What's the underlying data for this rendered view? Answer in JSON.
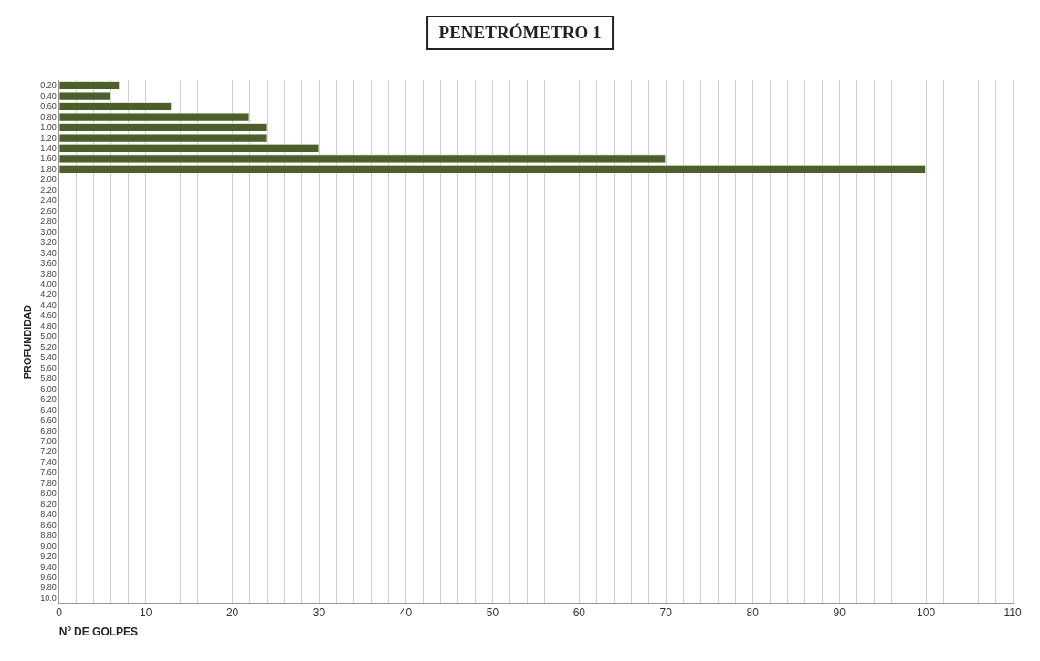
{
  "chart_data": {
    "type": "bar",
    "orientation": "horizontal",
    "title": "PENETRÓMETRO 1",
    "xlabel": "Nº DE GOLPES",
    "ylabel": "PROFUNDIDAD",
    "categories": [
      "0.20",
      "0.40",
      "0.60",
      "0.80",
      "1.00",
      "1.20",
      "1.40",
      "1.60",
      "1.80",
      "2.00",
      "2.20",
      "2.40",
      "2.60",
      "2.80",
      "3.00",
      "3.20",
      "3.40",
      "3.60",
      "3.80",
      "4.00",
      "4.20",
      "4.40",
      "4.60",
      "4.80",
      "5.00",
      "5.20",
      "5.40",
      "5.60",
      "5.80",
      "6.00",
      "6.20",
      "6.40",
      "6.60",
      "6.80",
      "7.00",
      "7.20",
      "7.40",
      "7.60",
      "7.80",
      "8.00",
      "8.20",
      "8.40",
      "8.60",
      "8.80",
      "9.00",
      "9.20",
      "9.40",
      "9.60",
      "9.80",
      "10.0"
    ],
    "values": [
      7,
      6,
      13,
      22,
      24,
      24,
      30,
      70,
      100,
      null,
      null,
      null,
      null,
      null,
      null,
      null,
      null,
      null,
      null,
      null,
      null,
      null,
      null,
      null,
      null,
      null,
      null,
      null,
      null,
      null,
      null,
      null,
      null,
      null,
      null,
      null,
      null,
      null,
      null,
      null,
      null,
      null,
      null,
      null,
      null,
      null,
      null,
      null,
      null,
      null
    ],
    "color": "#4b5e2c",
    "xlim": [
      0,
      110
    ],
    "xticks": [
      0,
      {
        "value": 2,
        "label": null
      },
      {
        "value": 4,
        "label": null
      },
      {
        "value": 6,
        "label": null
      },
      {
        "value": 8,
        "label": null
      },
      10,
      {
        "value": 12,
        "label": null
      },
      {
        "value": 14,
        "label": null
      },
      {
        "value": 16,
        "label": null
      },
      {
        "value": 18,
        "label": null
      },
      20,
      {
        "value": 22,
        "label": null
      },
      {
        "value": 24,
        "label": null
      },
      {
        "value": 26,
        "label": null
      },
      {
        "value": 28,
        "label": null
      },
      30,
      {
        "value": 32,
        "label": null
      },
      {
        "value": 34,
        "label": null
      },
      {
        "value": 36,
        "label": null
      },
      {
        "value": 38,
        "label": null
      },
      40,
      {
        "value": 42,
        "label": null
      },
      {
        "value": 44,
        "label": null
      },
      {
        "value": 46,
        "label": null
      },
      {
        "value": 48,
        "label": null
      },
      50,
      {
        "value": 52,
        "label": null
      },
      {
        "value": 54,
        "label": null
      },
      {
        "value": 56,
        "label": null
      },
      {
        "value": 58,
        "label": null
      },
      60,
      {
        "value": 62,
        "label": null
      },
      {
        "value": 64,
        "label": null
      },
      {
        "value": 66,
        "label": null
      },
      {
        "value": 68,
        "label": null
      },
      70,
      {
        "value": 72,
        "label": null
      },
      {
        "value": 74,
        "label": null
      },
      {
        "value": 76,
        "label": null
      },
      {
        "value": 78,
        "label": null
      },
      80,
      {
        "value": 82,
        "label": null
      },
      {
        "value": 84,
        "label": null
      },
      {
        "value": 86,
        "label": null
      },
      {
        "value": 88,
        "label": null
      },
      90,
      {
        "value": 92,
        "label": null
      },
      {
        "value": 94,
        "label": null
      },
      {
        "value": 96,
        "label": null
      },
      {
        "value": 98,
        "label": null
      },
      100,
      {
        "value": 102,
        "label": null
      },
      {
        "value": 104,
        "label": null
      },
      {
        "value": 106,
        "label": null
      },
      {
        "value": 108,
        "label": null
      },
      110
    ],
    "grid": "x"
  }
}
